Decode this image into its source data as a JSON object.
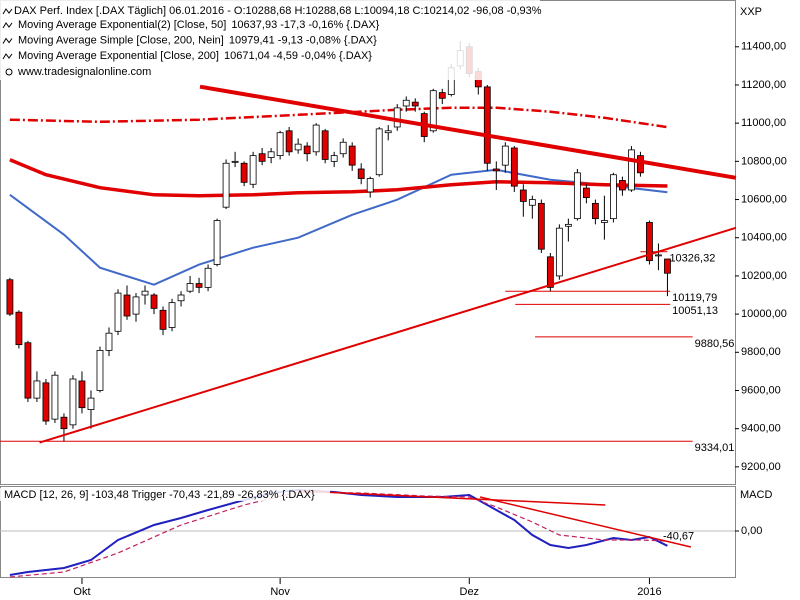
{
  "chart_data": [
    {
      "type": "candlestick",
      "header": "DAX Perf. Index [.DAX  Täglich] 06.01.2016 - O:10288,68 H:10288,68 L:10094,18 C:10214,02 -96,08 -0,93%",
      "source": "www.tradesignalonline.com",
      "axis_title": "XXP",
      "xlim": [
        -1.1,
        80.5
      ],
      "ylim": [
        9105,
        11645
      ],
      "yticks": [
        {
          "value": 9200,
          "label": "9200,00"
        },
        {
          "value": 9400,
          "label": "9400,00"
        },
        {
          "value": 9600,
          "label": "9600,00"
        },
        {
          "value": 9800,
          "label": "9800,00"
        },
        {
          "value": 10000,
          "label": "10000,00"
        },
        {
          "value": 10200,
          "label": "10200,00"
        },
        {
          "value": 10400,
          "label": "10400,00"
        },
        {
          "value": 10600,
          "label": "10600,00"
        },
        {
          "value": 10800,
          "label": "10800,00"
        },
        {
          "value": 11000,
          "label": "11000,00"
        },
        {
          "value": 11200,
          "label": "11200,00"
        },
        {
          "value": 11400,
          "label": "11400,00"
        }
      ],
      "up_color": "#ffffff",
      "down_color": "#e00000",
      "open": [
        10180,
        10010,
        9850,
        9560,
        9640,
        9450,
        9460,
        9420,
        9650,
        9500,
        9600,
        9810,
        9910,
        10100,
        10000,
        10100,
        10100,
        10020,
        9930,
        10070,
        10120,
        10160,
        10140,
        10260,
        10560,
        10800,
        10790,
        10680,
        10840,
        10820,
        10830,
        10960,
        10860,
        10880,
        10850,
        10960,
        10800,
        10840,
        10880,
        10760,
        10640,
        10730,
        10950,
        10980,
        11090,
        11110,
        11050,
        10960,
        11160,
        11150,
        11300,
        11400,
        11270,
        11190,
        10760,
        10780,
        10870,
        10650,
        10570,
        10580,
        10300,
        10200,
        10460,
        10500,
        10660,
        10580,
        10480,
        10500,
        10700,
        10650,
        10830,
        10480,
        10310,
        10288.68
      ],
      "high": [
        10190,
        10020,
        9860,
        9700,
        9660,
        9700,
        9480,
        9680,
        9700,
        9600,
        9830,
        9930,
        10130,
        10150,
        10110,
        10150,
        10110,
        10040,
        10080,
        10120,
        10200,
        10190,
        10260,
        10500,
        10810,
        10850,
        10800,
        10850,
        10870,
        10870,
        10960,
        10980,
        10920,
        10900,
        11000,
        10970,
        10850,
        10920,
        10900,
        10790,
        10720,
        10980,
        10990,
        11100,
        11140,
        11130,
        11060,
        11180,
        11180,
        11310,
        11430,
        11420,
        11290,
        11200,
        10800,
        10900,
        10880,
        10680,
        10620,
        10600,
        10320,
        10470,
        10500,
        10760,
        10680,
        10600,
        10620,
        10740,
        10720,
        10880,
        10850,
        10490,
        10370,
        10288.68
      ],
      "low": [
        9990,
        9820,
        9540,
        9540,
        9420,
        9430,
        9334.01,
        9400,
        9480,
        9400,
        9590,
        9780,
        9890,
        9970,
        9960,
        10050,
        10000,
        9890,
        9910,
        10040,
        10110,
        10110,
        10120,
        10250,
        10550,
        10770,
        10670,
        10660,
        10780,
        10790,
        10810,
        10830,
        10840,
        10800,
        10830,
        10790,
        10770,
        10820,
        10750,
        10680,
        10610,
        10720,
        10910,
        10960,
        11060,
        11060,
        10900,
        10950,
        11100,
        11140,
        11280,
        11240,
        11150,
        10750,
        10650,
        10740,
        10640,
        10510,
        10500,
        10320,
        10120,
        10180,
        10380,
        10490,
        10580,
        10470,
        10390,
        10480,
        10620,
        10640,
        10720,
        10260,
        10230,
        10094.18
      ],
      "close": [
        10000,
        9840,
        9560,
        9650,
        9440,
        9680,
        9400,
        9660,
        9510,
        9560,
        9810,
        9900,
        10110,
        9990,
        10090,
        10120,
        10030,
        9920,
        10060,
        10100,
        10160,
        10140,
        10240,
        10490,
        10790,
        10800,
        10690,
        10830,
        10800,
        10850,
        10950,
        10850,
        10890,
        10840,
        10990,
        10810,
        10830,
        10900,
        10780,
        10710,
        10710,
        10970,
        10960,
        11080,
        11120,
        11090,
        10930,
        11170,
        11130,
        11290,
        11380,
        11260,
        11190,
        10790,
        10750,
        10880,
        10670,
        10590,
        10600,
        10340,
        10140,
        10450,
        10470,
        10740,
        10610,
        10500,
        10490,
        10730,
        10650,
        10860,
        10740,
        10280,
        10310,
        10214.02
      ],
      "series": [
        {
          "name": "Moving Average Exponential(2) [Close, 50]",
          "legend_value": "10637,93 -17,3 -0,16% {.DAX}",
          "color": "#4169c8",
          "style": "solid",
          "x": [
            0,
            6,
            10,
            16,
            21,
            27,
            32,
            38,
            43,
            49,
            54,
            60,
            66,
            73
          ],
          "values": [
            10625,
            10416,
            10243,
            10154,
            10259,
            10348,
            10400,
            10520,
            10599,
            10730,
            10756,
            10704,
            10677,
            10637.93
          ]
        },
        {
          "name": "Moving Average Simple [Close, 200, Nein]",
          "legend_value": "10979,41 -9,13 -0,08% {.DAX}",
          "color": "#e00000",
          "style": "dashdot",
          "x": [
            0,
            10,
            21,
            32,
            43,
            49,
            54,
            60,
            66,
            73
          ],
          "values": [
            11018,
            11007,
            11018,
            11044,
            11070,
            11081,
            11081,
            11060,
            11028,
            10979.41
          ]
        },
        {
          "name": "Moving Average Exponential [Close, 200]",
          "legend_value": "10671,04 -4,59 -0,04% {.DAX}",
          "color": "#e00000",
          "style": "thick",
          "x": [
            0,
            4,
            10,
            16,
            21,
            27,
            32,
            38,
            43,
            49,
            54,
            60,
            66,
            73
          ],
          "values": [
            10808,
            10730,
            10662,
            10625,
            10620,
            10625,
            10636,
            10641,
            10651,
            10677,
            10693,
            10688,
            10677,
            10671.04
          ]
        }
      ],
      "trendlines": [
        {
          "x": [
            21.1,
            80.6
          ],
          "values": [
            11191,
            10714
          ],
          "color": "#e00000",
          "width": 4
        },
        {
          "x": [
            3.3,
            80.6
          ],
          "values": [
            9327,
            10452
          ],
          "color": "#e00000",
          "width": 2
        }
      ],
      "levels": [
        {
          "value": 9334.01,
          "label": "9334,01",
          "x_from": -1.1,
          "x_to": 75.8
        },
        {
          "value": 9880.56,
          "label": "9880,56",
          "x_from": 58.3,
          "x_to": 75.8
        },
        {
          "value": 10051.13,
          "label": "10051,13",
          "x_from": 56.1,
          "x_to": 73.3
        },
        {
          "value": 10119.79,
          "label": "10119,79",
          "x_from": 55,
          "x_to": 73.3
        },
        {
          "value": 10326.32,
          "label": "10326,32",
          "x_from": 70,
          "x_to": 73
        }
      ]
    },
    {
      "type": "line",
      "header": "MACD [12, 26, 9] -103,48 Trigger -70,43 -21,89 -26,83% {.DAX}",
      "axis_title": "MACD",
      "xlim": [
        -1.1,
        80.5
      ],
      "ylim": [
        -329,
        308
      ],
      "yticks": [
        {
          "value": 0,
          "label": "0,00"
        }
      ],
      "xticks": [
        {
          "value": 8,
          "label": "Okt"
        },
        {
          "value": 30,
          "label": "Nov"
        },
        {
          "value": 51,
          "label": "Dez"
        },
        {
          "value": 71,
          "label": "2016"
        }
      ],
      "series": [
        {
          "name": "MACD",
          "color": "#2020c0",
          "style": "solid",
          "x": [
            0,
            2,
            6,
            9,
            12,
            16,
            19,
            22,
            26,
            29,
            32,
            36,
            39,
            43,
            48,
            51,
            53,
            56,
            58,
            60,
            62,
            64,
            67,
            69,
            71,
            73
          ],
          "values": [
            -308,
            -287,
            -259,
            -203,
            -63,
            42,
            91,
            147,
            217,
            266,
            287,
            273,
            252,
            238,
            238,
            252,
            182,
            77,
            -28,
            -98,
            -119,
            -98,
            -49,
            -63,
            -42,
            -103.48
          ]
        },
        {
          "name": "Trigger",
          "color": "#c02060",
          "style": "dashed",
          "x": [
            0,
            6,
            12,
            19,
            26,
            32,
            39,
            46,
            51,
            54,
            58,
            61,
            66,
            70,
            73
          ],
          "values": [
            -322,
            -287,
            -154,
            42,
            182,
            273,
            266,
            245,
            238,
            168,
            63,
            -28,
            -63,
            -63,
            -70.43
          ]
        }
      ],
      "trendlines": [
        {
          "x": [
            32.2,
            66.1
          ],
          "values": [
            280,
            182
          ],
          "color": "#e00000",
          "width": 1.5
        },
        {
          "x": [
            52.2,
            75.6
          ],
          "values": [
            238,
            -112
          ],
          "color": "#e00000",
          "width": 1.5
        }
      ],
      "annotation": {
        "x": 72.5,
        "value": -40.67,
        "label": "-40,67"
      }
    }
  ]
}
